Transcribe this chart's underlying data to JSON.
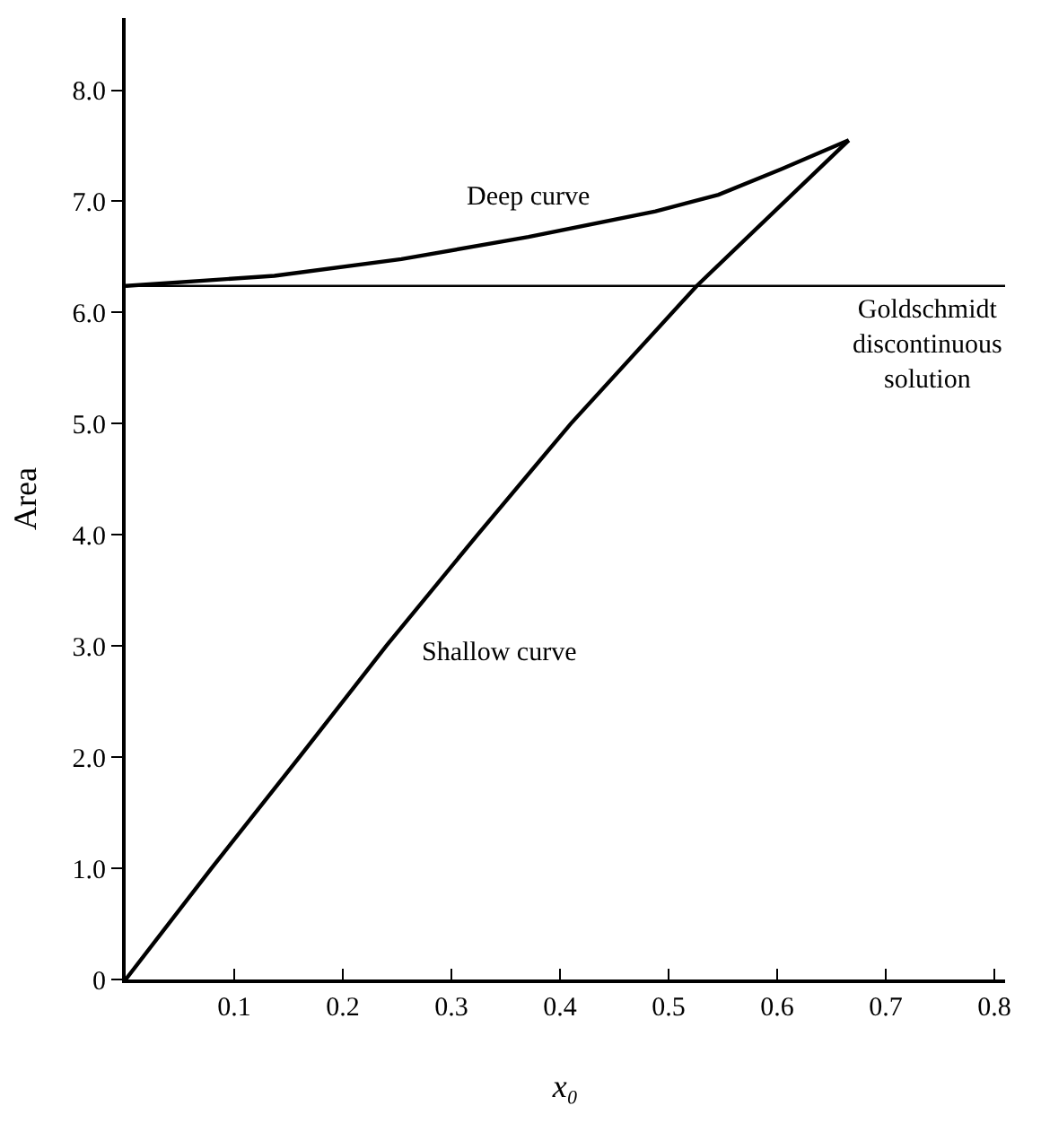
{
  "chart_data": {
    "type": "line",
    "xlabel": "x₀",
    "ylabel": "Area",
    "xlim": [
      0,
      0.81
    ],
    "ylim": [
      0,
      8.65
    ],
    "xticks": [
      0.1,
      0.2,
      0.3,
      0.4,
      0.5,
      0.6,
      0.7,
      0.8
    ],
    "yticks": [
      0,
      {
        "value": 1,
        "label": "1.0"
      },
      {
        "value": 2,
        "label": "2.0"
      },
      {
        "value": 3,
        "label": "3.0"
      },
      {
        "value": 4,
        "label": "4.0"
      },
      {
        "value": 5,
        "label": "5.0"
      },
      {
        "value": 6,
        "label": "6.0"
      },
      {
        "value": 7,
        "label": "7.0"
      },
      {
        "value": 8,
        "label": "8.0"
      }
    ],
    "series": [
      {
        "name": "Deep curve",
        "color": "#000000",
        "x": [
          0,
          0.137,
          0.254,
          0.371,
          0.488,
          0.546,
          0.604,
          0.666
        ],
        "values": [
          6.24,
          6.33,
          6.48,
          6.68,
          6.91,
          7.06,
          7.29,
          7.55
        ]
      },
      {
        "name": "Shallow curve",
        "color": "#000000",
        "x": [
          0,
          0.079,
          0.16,
          0.24,
          0.324,
          0.41,
          0.526,
          0.666
        ],
        "values": [
          0,
          1,
          2,
          3,
          4,
          5,
          6.24,
          7.55
        ]
      }
    ],
    "ref_lines": [
      {
        "axis": "y",
        "value": 6.24,
        "label": "Goldschmidt\ndiscontinuous\nsolution",
        "color": "#000000"
      }
    ],
    "legend": false,
    "marker": "none",
    "line_style": "solid"
  }
}
